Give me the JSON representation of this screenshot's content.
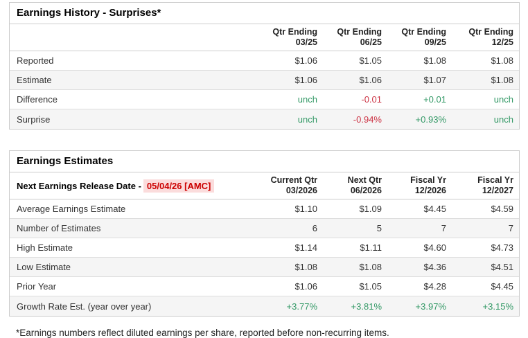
{
  "colors": {
    "positive": "#339966",
    "negative": "#cc3344",
    "release_date_text": "#cc0000",
    "release_date_bg": "#fbdcdc",
    "row_alt_bg": "#f5f5f5",
    "table_border": "#cccccc",
    "row_border": "#dddddd",
    "body_text": "#333333"
  },
  "history_table": {
    "title": "Earnings History - Surprises*",
    "columns": [
      {
        "line1": "Qtr Ending",
        "line2": "03/25"
      },
      {
        "line1": "Qtr Ending",
        "line2": "06/25"
      },
      {
        "line1": "Qtr Ending",
        "line2": "09/25"
      },
      {
        "line1": "Qtr Ending",
        "line2": "12/25"
      }
    ],
    "rows": [
      {
        "label": "Reported",
        "values": [
          {
            "text": "$1.06",
            "tone": "plain"
          },
          {
            "text": "$1.05",
            "tone": "plain"
          },
          {
            "text": "$1.08",
            "tone": "plain"
          },
          {
            "text": "$1.08",
            "tone": "plain"
          }
        ]
      },
      {
        "label": "Estimate",
        "values": [
          {
            "text": "$1.06",
            "tone": "plain"
          },
          {
            "text": "$1.06",
            "tone": "plain"
          },
          {
            "text": "$1.07",
            "tone": "plain"
          },
          {
            "text": "$1.08",
            "tone": "plain"
          }
        ]
      },
      {
        "label": "Difference",
        "values": [
          {
            "text": "unch",
            "tone": "pos"
          },
          {
            "text": "-0.01",
            "tone": "neg"
          },
          {
            "text": "+0.01",
            "tone": "pos"
          },
          {
            "text": "unch",
            "tone": "pos"
          }
        ]
      },
      {
        "label": "Surprise",
        "values": [
          {
            "text": "unch",
            "tone": "pos"
          },
          {
            "text": "-0.94%",
            "tone": "neg"
          },
          {
            "text": "+0.93%",
            "tone": "pos"
          },
          {
            "text": "unch",
            "tone": "pos"
          }
        ]
      }
    ]
  },
  "estimates_table": {
    "title": "Earnings Estimates",
    "release_label": "Next Earnings Release Date -",
    "release_date": "05/04/26 [AMC]",
    "columns": [
      {
        "line1": "Current Qtr",
        "line2": "03/2026"
      },
      {
        "line1": "Next Qtr",
        "line2": "06/2026"
      },
      {
        "line1": "Fiscal Yr",
        "line2": "12/2026"
      },
      {
        "line1": "Fiscal Yr",
        "line2": "12/2027"
      }
    ],
    "rows": [
      {
        "label": "Average Earnings Estimate",
        "values": [
          {
            "text": "$1.10",
            "tone": "plain"
          },
          {
            "text": "$1.09",
            "tone": "plain"
          },
          {
            "text": "$4.45",
            "tone": "plain"
          },
          {
            "text": "$4.59",
            "tone": "plain"
          }
        ]
      },
      {
        "label": "Number of Estimates",
        "values": [
          {
            "text": "6",
            "tone": "plain"
          },
          {
            "text": "5",
            "tone": "plain"
          },
          {
            "text": "7",
            "tone": "plain"
          },
          {
            "text": "7",
            "tone": "plain"
          }
        ]
      },
      {
        "label": "High Estimate",
        "values": [
          {
            "text": "$1.14",
            "tone": "plain"
          },
          {
            "text": "$1.11",
            "tone": "plain"
          },
          {
            "text": "$4.60",
            "tone": "plain"
          },
          {
            "text": "$4.73",
            "tone": "plain"
          }
        ]
      },
      {
        "label": "Low Estimate",
        "values": [
          {
            "text": "$1.08",
            "tone": "plain"
          },
          {
            "text": "$1.08",
            "tone": "plain"
          },
          {
            "text": "$4.36",
            "tone": "plain"
          },
          {
            "text": "$4.51",
            "tone": "plain"
          }
        ]
      },
      {
        "label": "Prior Year",
        "values": [
          {
            "text": "$1.06",
            "tone": "plain"
          },
          {
            "text": "$1.05",
            "tone": "plain"
          },
          {
            "text": "$4.28",
            "tone": "plain"
          },
          {
            "text": "$4.45",
            "tone": "plain"
          }
        ]
      },
      {
        "label": "Growth Rate Est. (year over year)",
        "values": [
          {
            "text": "+3.77%",
            "tone": "pos"
          },
          {
            "text": "+3.81%",
            "tone": "pos"
          },
          {
            "text": "+3.97%",
            "tone": "pos"
          },
          {
            "text": "+3.15%",
            "tone": "pos"
          }
        ]
      }
    ]
  },
  "footnote": "*Earnings numbers reflect diluted earnings per share, reported before non-recurring items."
}
